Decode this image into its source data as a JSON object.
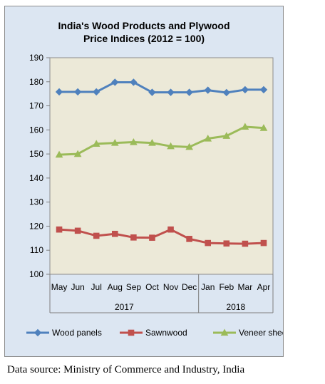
{
  "chart_data": {
    "type": "line",
    "title": "India's Wood Products and Plywood\nPrice Indices (2012 = 100)",
    "categories": [
      "May",
      "Jun",
      "Jul",
      "Aug",
      "Sep",
      "Oct",
      "Nov",
      "Dec",
      "Jan",
      "Feb",
      "Mar",
      "Apr"
    ],
    "year_groups": [
      {
        "label": "2017",
        "categories": [
          "May",
          "Jun",
          "Jul",
          "Aug",
          "Sep",
          "Oct",
          "Nov",
          "Dec"
        ]
      },
      {
        "label": "2018",
        "categories": [
          "Jan",
          "Feb",
          "Mar",
          "Apr"
        ]
      }
    ],
    "series": [
      {
        "name": "Wood panels",
        "color": "#4f81bd",
        "marker": "diamond",
        "values": [
          175.8,
          175.8,
          175.8,
          179.8,
          179.8,
          175.6,
          175.6,
          175.6,
          176.5,
          175.5,
          176.7,
          176.7
        ]
      },
      {
        "name": "Sawnwood",
        "color": "#c0504d",
        "marker": "square",
        "values": [
          118.6,
          118.1,
          116.0,
          116.8,
          115.3,
          115.2,
          118.6,
          114.7,
          113.0,
          112.8,
          112.7,
          113.0
        ]
      },
      {
        "name": "Veneer sheets",
        "color": "#9bbb59",
        "marker": "triangle",
        "values": [
          149.7,
          150.0,
          154.2,
          154.6,
          154.9,
          154.6,
          153.2,
          152.9,
          156.4,
          157.5,
          161.3,
          160.8
        ]
      }
    ],
    "ylim": [
      100,
      190
    ],
    "yticks": [
      100,
      110,
      120,
      130,
      140,
      150,
      160,
      170,
      180,
      190
    ],
    "grid": false,
    "legend_position": "bottom",
    "plot_background": "#ece9d8",
    "chart_background": "#dce6f2"
  },
  "source_note": "Data source: Ministry of Commerce and Industry, India"
}
